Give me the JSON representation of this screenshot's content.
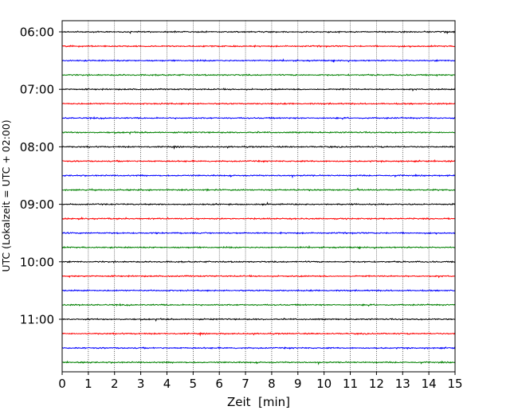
{
  "chart_data": {
    "type": "line",
    "subtype": "seismogram-helicorder",
    "xlabel": "Zeit  [min]",
    "ylabel": "UTC (Lokalzeit = UTC + 02:00)",
    "xlim": [
      0,
      15
    ],
    "x_ticks": [
      "0",
      "1",
      "2",
      "3",
      "4",
      "5",
      "6",
      "7",
      "8",
      "9",
      "10",
      "11",
      "12",
      "13",
      "14",
      "15"
    ],
    "y_tick_labels": [
      "06:00",
      "07:00",
      "08:00",
      "09:00",
      "10:00",
      "11:00"
    ],
    "grid": "vertical dotted lines at each minute",
    "color_cycle": [
      "#000000",
      "#ff0000",
      "#0000ff",
      "#008000"
    ],
    "traces": [
      {
        "start": "06:00",
        "color": "#000000"
      },
      {
        "start": "06:15",
        "color": "#ff0000"
      },
      {
        "start": "06:30",
        "color": "#0000ff"
      },
      {
        "start": "06:45",
        "color": "#008000"
      },
      {
        "start": "07:00",
        "color": "#000000"
      },
      {
        "start": "07:15",
        "color": "#ff0000"
      },
      {
        "start": "07:30",
        "color": "#0000ff"
      },
      {
        "start": "07:45",
        "color": "#008000"
      },
      {
        "start": "08:00",
        "color": "#000000"
      },
      {
        "start": "08:15",
        "color": "#ff0000"
      },
      {
        "start": "08:30",
        "color": "#0000ff"
      },
      {
        "start": "08:45",
        "color": "#008000"
      },
      {
        "start": "09:00",
        "color": "#000000"
      },
      {
        "start": "09:15",
        "color": "#ff0000"
      },
      {
        "start": "09:30",
        "color": "#0000ff"
      },
      {
        "start": "09:45",
        "color": "#008000"
      },
      {
        "start": "10:00",
        "color": "#000000"
      },
      {
        "start": "10:15",
        "color": "#ff0000"
      },
      {
        "start": "10:30",
        "color": "#0000ff"
      },
      {
        "start": "10:45",
        "color": "#008000"
      },
      {
        "start": "11:00",
        "color": "#000000"
      },
      {
        "start": "11:15",
        "color": "#ff0000"
      },
      {
        "start": "11:30",
        "color": "#0000ff"
      },
      {
        "start": "11:45",
        "color": "#008000"
      }
    ]
  }
}
